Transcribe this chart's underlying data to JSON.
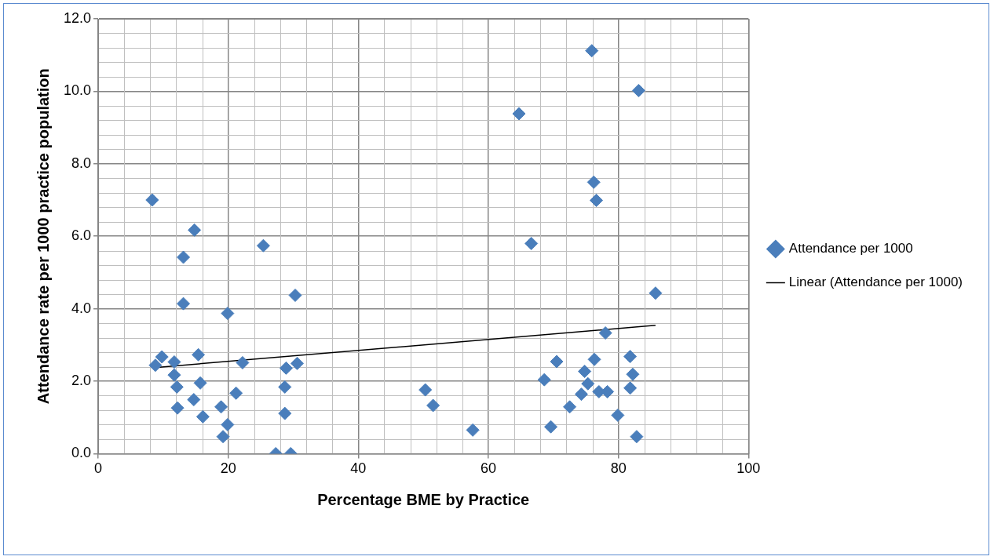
{
  "chart_data": {
    "type": "scatter",
    "xlabel": "Percentage BME by Practice",
    "ylabel": "Attendance rate per 1000 practice population",
    "xlim": [
      0,
      100
    ],
    "xticks": [
      0,
      20,
      40,
      60,
      80,
      100
    ],
    "ylim": [
      0,
      12
    ],
    "yticks": [
      {
        "value": 0,
        "label": "0.0"
      },
      {
        "value": 2,
        "label": "2.0"
      },
      {
        "value": 4,
        "label": "4.0"
      },
      {
        "value": 6,
        "label": "6.0"
      },
      {
        "value": 8,
        "label": "8.0"
      },
      {
        "value": 10,
        "label": "10.0"
      },
      {
        "value": 12,
        "label": "12.0"
      }
    ],
    "grid": true,
    "legend": "right",
    "marker": "diamond",
    "series": [
      {
        "name": "Attendance per 1000",
        "color": "#4a7ebb",
        "x": [
          8.3,
          14.8,
          13.1,
          25.4,
          30.3,
          13.1,
          19.9,
          9.8,
          8.8,
          11.7,
          15.4,
          22.2,
          28.9,
          30.6,
          11.7,
          12.1,
          15.7,
          14.7,
          21.2,
          28.7,
          12.2,
          16.1,
          18.9,
          19.9,
          19.2,
          28.7,
          27.3,
          29.6,
          85.7,
          78.0,
          70.5,
          76.3,
          81.8,
          74.8,
          82.2,
          68.6,
          75.3,
          81.8,
          74.3,
          77.0,
          78.3,
          72.5,
          79.9,
          69.6,
          82.8,
          50.3,
          51.5,
          57.6,
          75.9,
          83.1,
          64.7,
          76.2,
          76.6,
          66.6
        ],
        "values": [
          7.0,
          6.17,
          5.42,
          5.74,
          4.37,
          4.14,
          3.87,
          2.67,
          2.44,
          2.53,
          2.73,
          2.51,
          2.36,
          2.49,
          2.17,
          1.84,
          1.95,
          1.49,
          1.67,
          1.84,
          1.26,
          1.02,
          1.29,
          0.8,
          0.47,
          1.11,
          0,
          0,
          4.43,
          3.33,
          2.54,
          2.6,
          2.68,
          2.27,
          2.19,
          2.04,
          1.93,
          1.81,
          1.64,
          1.71,
          1.71,
          1.29,
          1.06,
          0.74,
          0.47,
          1.76,
          1.33,
          0.65,
          11.12,
          10.02,
          9.38,
          7.49,
          6.99,
          5.8
        ]
      },
      {
        "name": "Linear (Attendance per 1000)",
        "color": "#000000",
        "type": "line",
        "marker": "none",
        "line_style": "solid",
        "x": [
          8.3,
          85.7
        ],
        "values": [
          2.37,
          3.54
        ]
      }
    ]
  }
}
